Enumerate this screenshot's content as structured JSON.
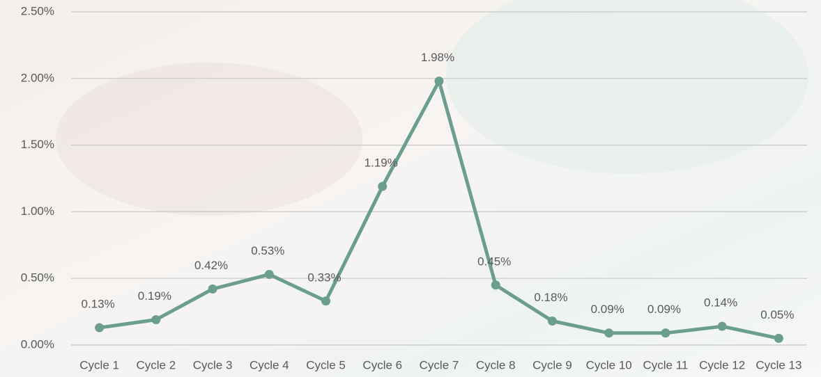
{
  "chart_data": {
    "type": "line",
    "categories": [
      "Cycle 1",
      "Cycle 2",
      "Cycle 3",
      "Cycle 4",
      "Cycle 5",
      "Cycle 6",
      "Cycle 7",
      "Cycle 8",
      "Cycle 9",
      "Cycle 10",
      "Cycle 11",
      "Cycle 12",
      "Cycle 13"
    ],
    "values": [
      0.13,
      0.19,
      0.42,
      0.53,
      0.33,
      1.19,
      1.98,
      0.45,
      0.18,
      0.09,
      0.09,
      0.14,
      0.05
    ],
    "value_labels": [
      "0.13%",
      "0.19%",
      "0.42%",
      "0.53%",
      "0.33%",
      "1.19%",
      "1.98%",
      "0.45%",
      "0.18%",
      "0.09%",
      "0.09%",
      "0.14%",
      "0.05%"
    ],
    "color": "#6b9e8f",
    "ylim": [
      0,
      2.5
    ],
    "yticks": [
      {
        "value": 0,
        "label": "0.00%"
      },
      {
        "value": 0.5,
        "label": "0.50%"
      },
      {
        "value": 1,
        "label": "1.00%"
      },
      {
        "value": 1.5,
        "label": "1.50%"
      },
      {
        "value": 2,
        "label": "2.00%"
      },
      {
        "value": 2.5,
        "label": "2.50%"
      }
    ],
    "grid": true
  }
}
